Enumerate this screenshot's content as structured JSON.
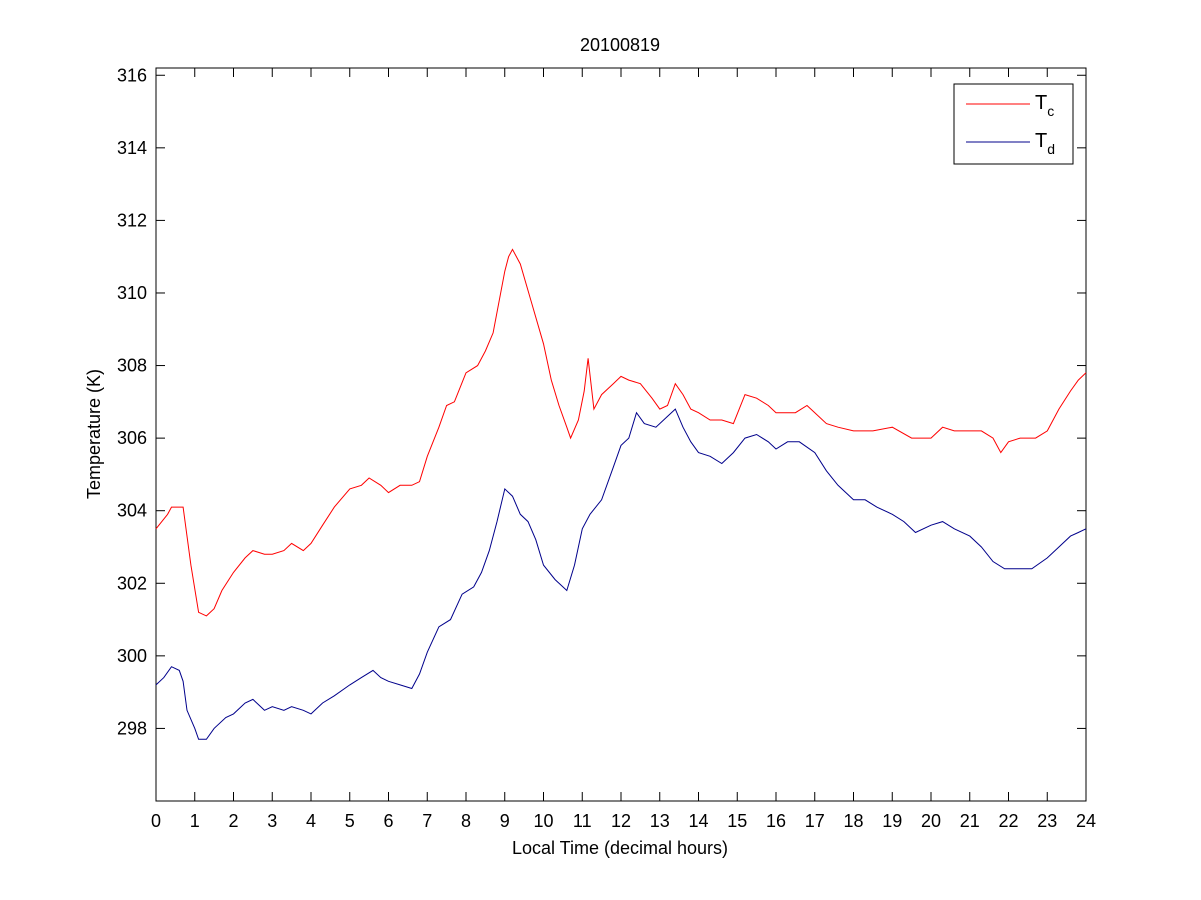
{
  "chart_data": {
    "type": "line",
    "title": "20100819",
    "xlabel": "Local Time (decimal hours)",
    "ylabel": "Temperature (K)",
    "xlim": [
      0,
      24
    ],
    "ylim": [
      296,
      316.2
    ],
    "xticks": [
      "0",
      "1",
      "2",
      "3",
      "4",
      "5",
      "6",
      "7",
      "8",
      "9",
      "10",
      "11",
      "12",
      "13",
      "14",
      "15",
      "16",
      "17",
      "18",
      "19",
      "20",
      "21",
      "22",
      "23",
      "24"
    ],
    "yticks": [
      "298",
      "300",
      "302",
      "304",
      "306",
      "308",
      "310",
      "312",
      "314",
      "316"
    ],
    "grid": false,
    "legend_position": "top-right",
    "series": [
      {
        "name": "T",
        "subscript": "c",
        "color": "#ff0000",
        "x": [
          0,
          0.3,
          0.4,
          0.7,
          0.9,
          1.1,
          1.3,
          1.5,
          1.7,
          2.0,
          2.3,
          2.5,
          2.8,
          3.0,
          3.3,
          3.5,
          3.8,
          4.0,
          4.3,
          4.6,
          5.0,
          5.3,
          5.5,
          5.8,
          6.0,
          6.3,
          6.6,
          6.8,
          7.0,
          7.3,
          7.5,
          7.7,
          8.0,
          8.3,
          8.5,
          8.7,
          9.0,
          9.1,
          9.2,
          9.4,
          9.7,
          10.0,
          10.2,
          10.4,
          10.6,
          10.7,
          10.9,
          11.05,
          11.15,
          11.3,
          11.5,
          11.8,
          12.0,
          12.2,
          12.5,
          12.8,
          13.0,
          13.2,
          13.4,
          13.6,
          13.8,
          14.0,
          14.3,
          14.6,
          14.9,
          15.2,
          15.5,
          15.8,
          16.0,
          16.5,
          16.8,
          17.0,
          17.3,
          17.6,
          18.0,
          18.5,
          19.0,
          19.5,
          20.0,
          20.3,
          20.6,
          21.0,
          21.3,
          21.6,
          21.8,
          22.0,
          22.3,
          22.7,
          23.0,
          23.3,
          23.6,
          23.8,
          24.0
        ],
        "values": [
          303.5,
          303.9,
          304.1,
          304.1,
          302.5,
          301.2,
          301.1,
          301.3,
          301.8,
          302.3,
          302.7,
          302.9,
          302.8,
          302.8,
          302.9,
          303.1,
          302.9,
          303.1,
          303.6,
          304.1,
          304.6,
          304.7,
          304.9,
          304.7,
          304.5,
          304.7,
          304.7,
          304.8,
          305.5,
          306.3,
          306.9,
          307.0,
          307.8,
          308.0,
          308.4,
          308.9,
          310.6,
          311.0,
          311.2,
          310.8,
          309.7,
          308.6,
          307.6,
          306.9,
          306.3,
          306.0,
          306.5,
          307.3,
          308.2,
          306.8,
          307.2,
          307.5,
          307.7,
          307.6,
          307.5,
          307.1,
          306.8,
          306.9,
          307.5,
          307.2,
          306.8,
          306.7,
          306.5,
          306.5,
          306.4,
          307.2,
          307.1,
          306.9,
          306.7,
          306.7,
          306.9,
          306.7,
          306.4,
          306.3,
          306.2,
          306.2,
          306.3,
          306.0,
          306.0,
          306.3,
          306.2,
          306.2,
          306.2,
          306.0,
          305.6,
          305.9,
          306.0,
          306.0,
          306.2,
          306.8,
          307.3,
          307.6,
          307.8
        ]
      },
      {
        "name": "T",
        "subscript": "d",
        "color": "#00008b",
        "x": [
          0,
          0.2,
          0.4,
          0.6,
          0.7,
          0.8,
          1.0,
          1.1,
          1.3,
          1.5,
          1.8,
          2.0,
          2.3,
          2.5,
          2.8,
          3.0,
          3.3,
          3.5,
          3.8,
          4.0,
          4.3,
          4.6,
          5.0,
          5.3,
          5.6,
          5.8,
          6.0,
          6.3,
          6.6,
          6.8,
          7.0,
          7.3,
          7.6,
          7.9,
          8.2,
          8.4,
          8.6,
          8.8,
          9.0,
          9.2,
          9.4,
          9.6,
          9.8,
          10.0,
          10.3,
          10.6,
          10.8,
          11.0,
          11.2,
          11.5,
          11.8,
          12.0,
          12.2,
          12.4,
          12.6,
          12.9,
          13.2,
          13.4,
          13.6,
          13.8,
          14.0,
          14.3,
          14.6,
          14.9,
          15.2,
          15.5,
          15.8,
          16.0,
          16.3,
          16.6,
          17.0,
          17.3,
          17.6,
          18.0,
          18.3,
          18.6,
          19.0,
          19.3,
          19.6,
          20.0,
          20.3,
          20.6,
          21.0,
          21.3,
          21.6,
          21.9,
          22.2,
          22.6,
          23.0,
          23.3,
          23.6,
          23.8,
          24.0
        ],
        "values": [
          299.2,
          299.4,
          299.7,
          299.6,
          299.3,
          298.5,
          298.0,
          297.7,
          297.7,
          298.0,
          298.3,
          298.4,
          298.7,
          298.8,
          298.5,
          298.6,
          298.5,
          298.6,
          298.5,
          298.4,
          298.7,
          298.9,
          299.2,
          299.4,
          299.6,
          299.4,
          299.3,
          299.2,
          299.1,
          299.5,
          300.1,
          300.8,
          301.0,
          301.7,
          301.9,
          302.3,
          302.9,
          303.7,
          304.6,
          304.4,
          303.9,
          303.7,
          303.2,
          302.5,
          302.1,
          301.8,
          302.5,
          303.5,
          303.9,
          304.3,
          305.2,
          305.8,
          306.0,
          306.7,
          306.4,
          306.3,
          306.6,
          306.8,
          306.3,
          305.9,
          305.6,
          305.5,
          305.3,
          305.6,
          306.0,
          306.1,
          305.9,
          305.7,
          305.9,
          305.9,
          305.6,
          305.1,
          304.7,
          304.3,
          304.3,
          304.1,
          303.9,
          303.7,
          303.4,
          303.6,
          303.7,
          303.5,
          303.3,
          303.0,
          302.6,
          302.4,
          302.4,
          302.4,
          302.7,
          303.0,
          303.3,
          303.4,
          303.5
        ]
      }
    ]
  }
}
